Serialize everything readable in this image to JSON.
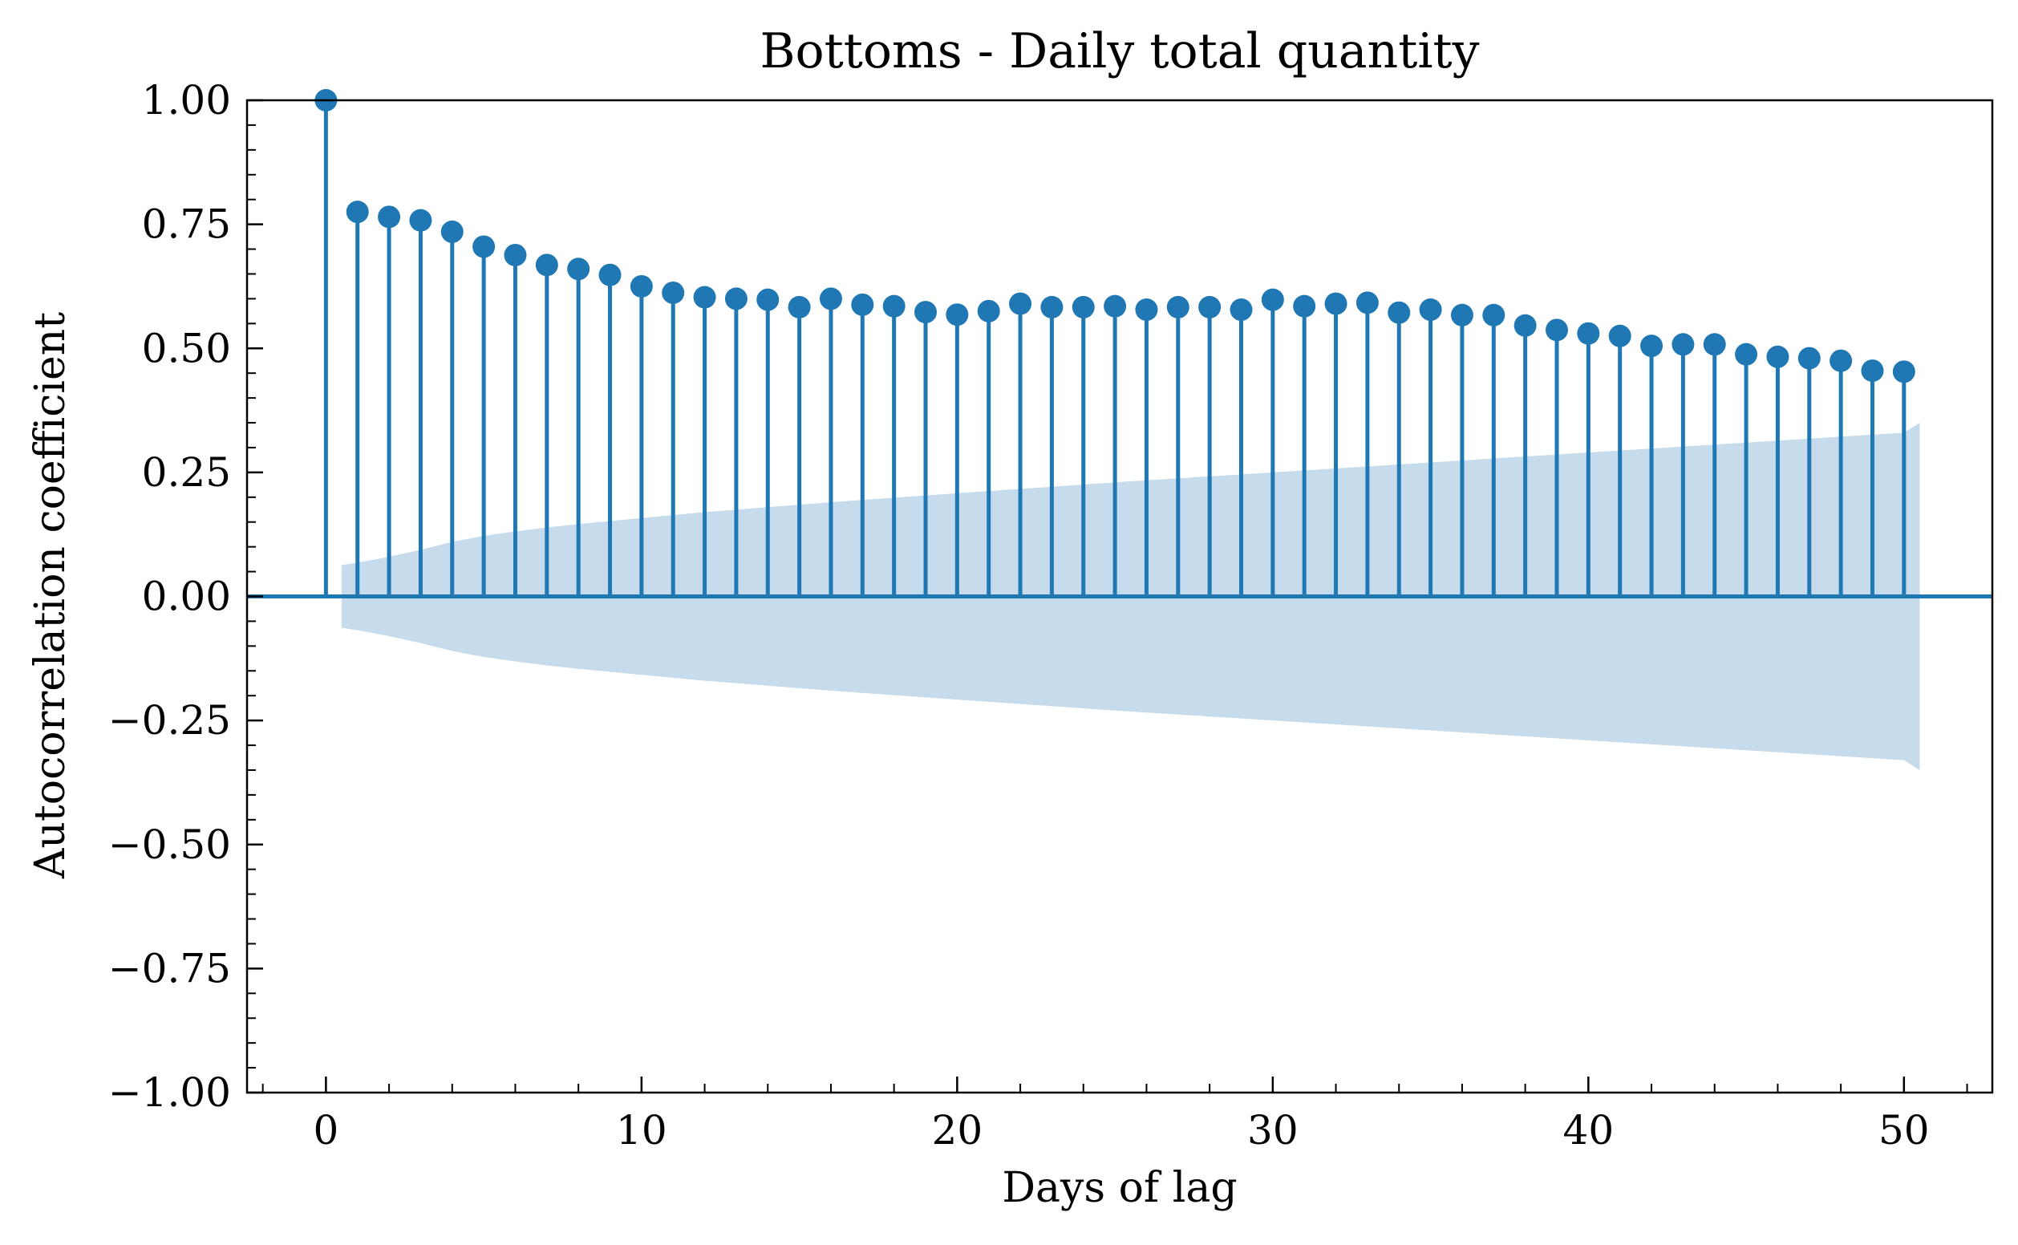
{
  "chart_data": {
    "type": "stem",
    "title": "Bottoms - Daily total quantity",
    "xlabel": "Days of lag",
    "ylabel": "Autocorrelation coefficient",
    "xlim": [
      -2.5,
      52.8
    ],
    "ylim": [
      -1.0,
      1.0
    ],
    "x_ticks": [
      0,
      10,
      20,
      30,
      40,
      50
    ],
    "x_tick_labels": [
      "0",
      "10",
      "20",
      "30",
      "40",
      "50"
    ],
    "y_ticks": [
      -1.0,
      -0.75,
      -0.5,
      -0.25,
      0.0,
      0.25,
      0.5,
      0.75,
      1.0
    ],
    "y_tick_labels": [
      "−1.00",
      "−0.75",
      "−0.50",
      "−0.25",
      "0.00",
      "0.25",
      "0.50",
      "0.75",
      "1.00"
    ],
    "grid": false,
    "colors": {
      "stem": "#1f77b4",
      "band": "#c6dcec"
    },
    "lags": [
      0,
      1,
      2,
      3,
      4,
      5,
      6,
      7,
      8,
      9,
      10,
      11,
      12,
      13,
      14,
      15,
      16,
      17,
      18,
      19,
      20,
      21,
      22,
      23,
      24,
      25,
      26,
      27,
      28,
      29,
      30,
      31,
      32,
      33,
      34,
      35,
      36,
      37,
      38,
      39,
      40,
      41,
      42,
      43,
      44,
      45,
      46,
      47,
      48,
      49,
      50
    ],
    "values": [
      1.0,
      0.775,
      0.765,
      0.758,
      0.735,
      0.705,
      0.688,
      0.668,
      0.66,
      0.648,
      0.625,
      0.612,
      0.603,
      0.6,
      0.598,
      0.583,
      0.6,
      0.588,
      0.585,
      0.573,
      0.568,
      0.575,
      0.59,
      0.583,
      0.583,
      0.585,
      0.578,
      0.583,
      0.583,
      0.578,
      0.598,
      0.585,
      0.59,
      0.592,
      0.572,
      0.578,
      0.567,
      0.567,
      0.546,
      0.537,
      0.53,
      0.525,
      0.505,
      0.508,
      0.508,
      0.488,
      0.483,
      0.48,
      0.475,
      0.455,
      0.453
    ],
    "confidence_band": {
      "lags": [
        0.5,
        1,
        2,
        3,
        4,
        5,
        6,
        7,
        8,
        9,
        10,
        12,
        14,
        16,
        18,
        20,
        25,
        30,
        35,
        40,
        45,
        50,
        50.5
      ],
      "upper": [
        0.063,
        0.068,
        0.08,
        0.094,
        0.11,
        0.122,
        0.131,
        0.139,
        0.146,
        0.152,
        0.158,
        0.17,
        0.18,
        0.19,
        0.199,
        0.208,
        0.23,
        0.25,
        0.27,
        0.29,
        0.31,
        0.33,
        0.35
      ]
    }
  }
}
